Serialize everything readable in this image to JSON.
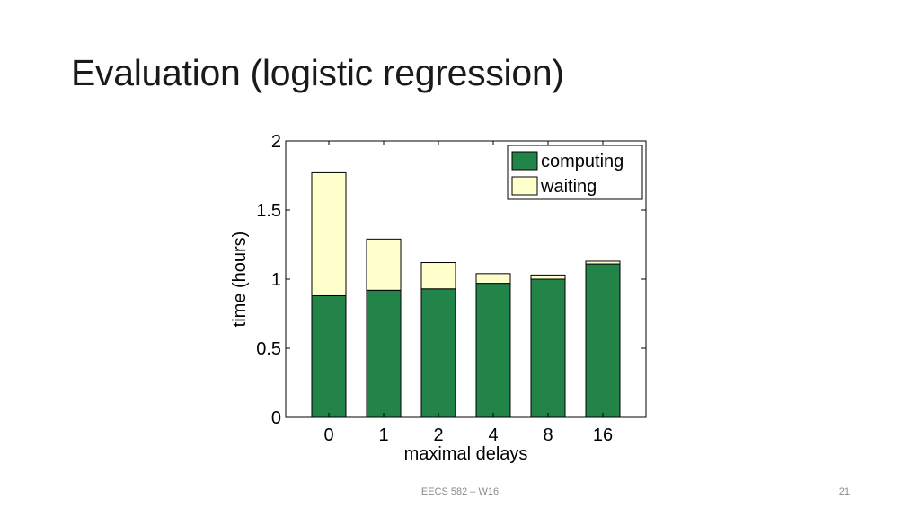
{
  "slide": {
    "title": "Evaluation (logistic regression)",
    "footer": "EECS 582 – W16",
    "page_number": "21"
  },
  "chart_data": {
    "type": "bar",
    "stacked": true,
    "categories": [
      "0",
      "1",
      "2",
      "4",
      "8",
      "16"
    ],
    "series": [
      {
        "name": "computing",
        "color": "#23844a",
        "values": [
          0.88,
          0.92,
          0.93,
          0.97,
          1.0,
          1.11
        ]
      },
      {
        "name": "waiting",
        "color": "#ffffcc",
        "values": [
          0.89,
          0.37,
          0.19,
          0.07,
          0.03,
          0.02
        ]
      }
    ],
    "xlabel": "maximal delays",
    "ylabel": "time (hours)",
    "ylim": [
      0,
      2
    ],
    "yticks": [
      {
        "value": 0,
        "label": "0"
      },
      {
        "value": 0.5,
        "label": "0.5"
      },
      {
        "value": 1,
        "label": "1"
      },
      {
        "value": 1.5,
        "label": "1.5"
      },
      {
        "value": 2,
        "label": "2"
      }
    ],
    "grid": false,
    "legend_position": "top-right"
  }
}
